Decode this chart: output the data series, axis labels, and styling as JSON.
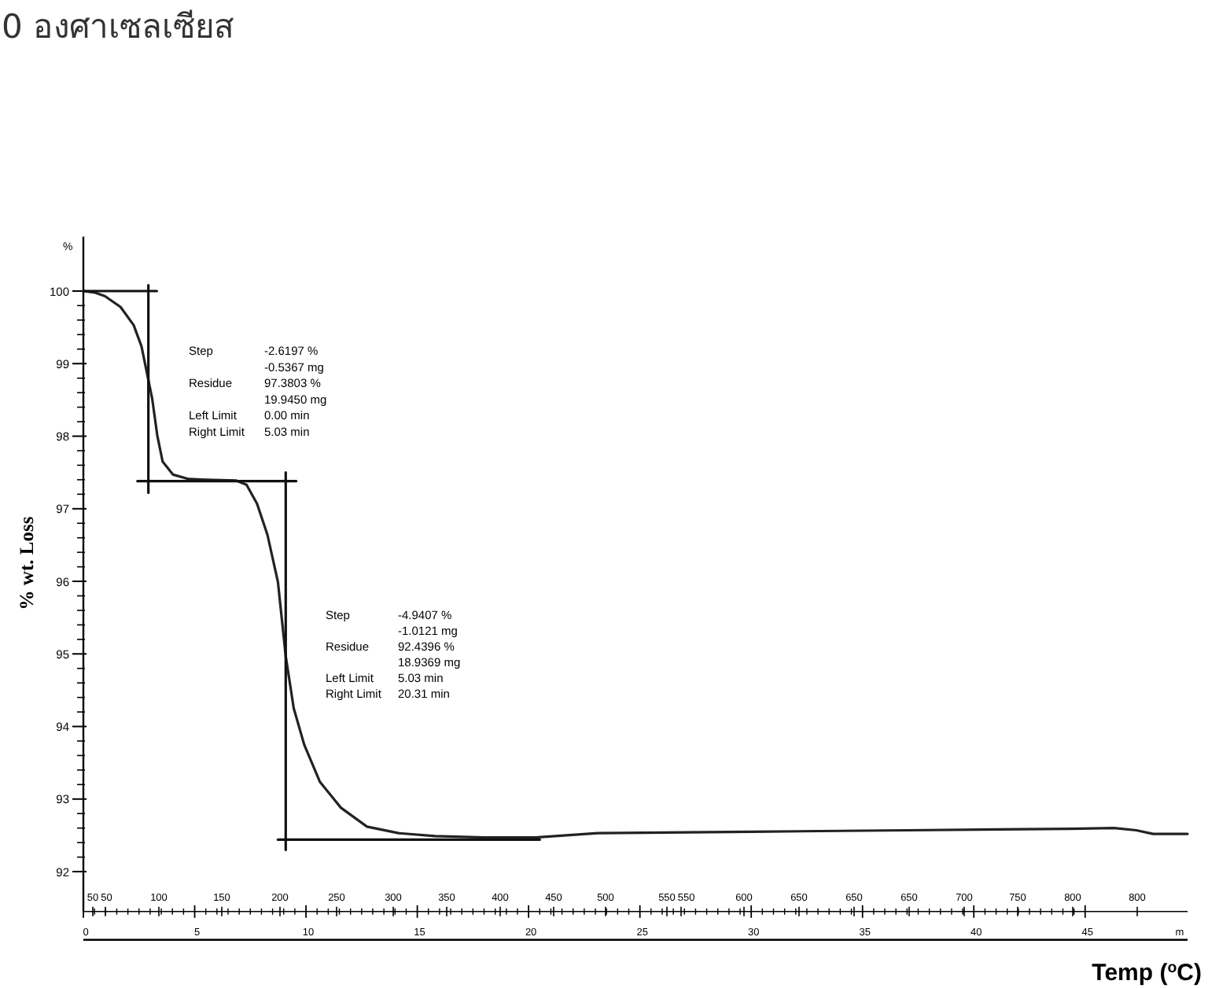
{
  "chart_data": {
    "type": "line",
    "annotations": [
      "0 องศาเซลเซียส",
      "%",
      "Step\t-2.6197 %\n\t-0.5367 mg\nResidue\t97.3803 %\n\t19.9450 mg\nLeft Limit\t0.00 min\nRight Limit\t5.03 min",
      "Step\t-4.9407 %\n\t-1.0121 mg\nResidue\t92.4396 %\n\t18.9369 mg\nLeft Limit\t5.03 min\nRight Limit\t20.31 min",
      "Temp ($^{o}$C)",
      "50",
      "50",
      "100",
      "150",
      "200",
      "250",
      "300",
      "350",
      "400",
      "450",
      "500",
      "550",
      "550",
      "600",
      "650",
      "650",
      "650",
      "700",
      "750",
      "800",
      "800"
    ],
    "xlabel": "m",
    "ylabel": "% wt. Loss",
    "xlim": [
      0,
      49.6
    ],
    "xticks": [
      0,
      5,
      10,
      15,
      20,
      25,
      30,
      35,
      40,
      45
    ],
    "ylim": [
      91.45,
      100.75
    ],
    "yticks": [
      92,
      93,
      94,
      95,
      96,
      97,
      98,
      99,
      100
    ],
    "series": [
      {
        "color": "#222222",
        "x": [
          0,
          0.5,
          0.97,
          1.67,
          2.26,
          2.61,
          2.85,
          3.09,
          3.32,
          3.56,
          4.03,
          4.73,
          5.5,
          6.85,
          7.33,
          7.8,
          8.27,
          8.74,
          9.09,
          9.45,
          9.92,
          10.62,
          11.57,
          12.74,
          14.16,
          15.8,
          18.0,
          20.3,
          23.1,
          30,
          37,
          44.3,
          46.3,
          47.3,
          48.05,
          49.6
        ],
        "values": [
          100,
          99.98,
          99.93,
          99.78,
          99.53,
          99.24,
          98.88,
          98.52,
          98.01,
          97.65,
          97.47,
          97.41,
          97.4,
          97.39,
          97.33,
          97.07,
          96.64,
          95.99,
          94.97,
          94.25,
          93.75,
          93.24,
          92.88,
          92.62,
          92.53,
          92.49,
          92.47,
          92.47,
          92.53,
          92.55,
          92.57,
          92.59,
          92.6,
          92.57,
          92.52,
          92.52
        ]
      },
      {
        "color": "#111111",
        "x": [
          0,
          3.3
        ],
        "values": [
          100,
          100
        ]
      },
      {
        "color": "#111111",
        "x": [
          2.92,
          2.92
        ],
        "values": [
          100.08,
          97.22
        ]
      },
      {
        "color": "#111111",
        "x": [
          2.43,
          9.56
        ],
        "values": [
          97.38,
          97.38
        ]
      },
      {
        "color": "#111111",
        "x": [
          9.09,
          9.09
        ],
        "values": [
          97.5,
          92.3
        ]
      },
      {
        "color": "#111111",
        "x": [
          8.74,
          20.5
        ],
        "values": [
          92.44,
          92.44
        ]
      }
    ]
  }
}
